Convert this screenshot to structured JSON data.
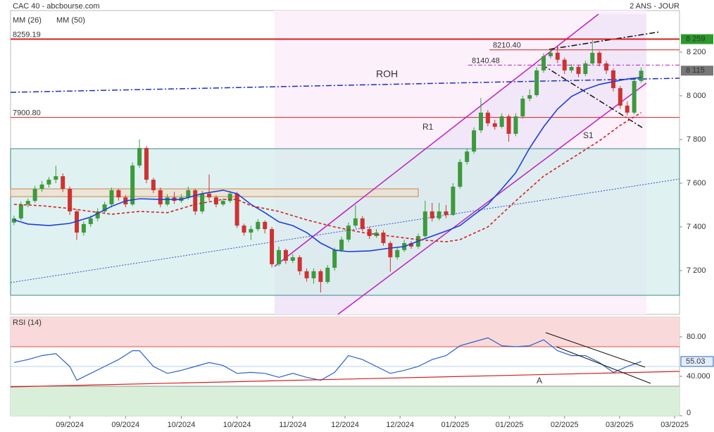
{
  "chart_data": [
    {
      "type": "candlestick",
      "title": "CAC 40 - abcbourse.com",
      "subtitle": "2 ANS - JOUR",
      "up_color": "#3d9a3d",
      "down_color": "#cc3333",
      "xlim": [
        -0.5,
        95.5
      ],
      "ylim": [
        7000,
        8390
      ],
      "yticks": [
        {
          "value": 7200,
          "label": "7 200"
        },
        {
          "value": 7400,
          "label": "7 400"
        },
        {
          "value": 7600,
          "label": "7 600"
        },
        {
          "value": 7800,
          "label": "7 800"
        },
        {
          "value": 8000,
          "label": "8 000"
        },
        {
          "value": 8200,
          "label": "8 200"
        }
      ],
      "xticks": [
        {
          "value": 8,
          "label": "09/2024"
        },
        {
          "value": 16,
          "label": "09/2024"
        },
        {
          "value": 24,
          "label": "10/2024"
        },
        {
          "value": 32,
          "label": "10/2024"
        },
        {
          "value": 40,
          "label": "11/2024"
        },
        {
          "value": 47.5,
          "label": "12/2024"
        },
        {
          "value": 55.4,
          "label": "12/2024"
        },
        {
          "value": 63.3,
          "label": "01/2025"
        },
        {
          "value": 71.1,
          "label": "01/2025"
        },
        {
          "value": 79,
          "label": "02/2025"
        },
        {
          "value": 86.9,
          "label": "03/2025"
        },
        {
          "value": 94.8,
          "label": "03/2025"
        }
      ],
      "candles": [
        [
          7420,
          7452,
          7408,
          7439
        ],
        [
          7439,
          7515,
          7430,
          7503
        ],
        [
          7503,
          7530,
          7490,
          7519
        ],
        [
          7519,
          7588,
          7510,
          7574
        ],
        [
          7574,
          7610,
          7560,
          7594
        ],
        [
          7594,
          7628,
          7580,
          7616
        ],
        [
          7616,
          7680,
          7600,
          7632
        ],
        [
          7632,
          7645,
          7560,
          7574
        ],
        [
          7574,
          7585,
          7455,
          7471
        ],
        [
          7471,
          7480,
          7340,
          7374
        ],
        [
          7374,
          7425,
          7360,
          7413
        ],
        [
          7413,
          7452,
          7400,
          7439
        ],
        [
          7439,
          7485,
          7425,
          7471
        ],
        [
          7471,
          7515,
          7460,
          7503
        ],
        [
          7503,
          7580,
          7490,
          7568
        ],
        [
          7568,
          7575,
          7520,
          7535
        ],
        [
          7535,
          7545,
          7490,
          7503
        ],
        [
          7503,
          7695,
          7495,
          7681
        ],
        [
          7681,
          7800,
          7670,
          7761
        ],
        [
          7761,
          7770,
          7600,
          7616
        ],
        [
          7616,
          7625,
          7555,
          7568
        ],
        [
          7568,
          7580,
          7490,
          7503
        ],
        [
          7503,
          7550,
          7495,
          7535
        ],
        [
          7535,
          7560,
          7505,
          7519
        ],
        [
          7519,
          7550,
          7510,
          7535
        ],
        [
          7535,
          7585,
          7525,
          7568
        ],
        [
          7568,
          7575,
          7455,
          7471
        ],
        [
          7471,
          7565,
          7460,
          7552
        ],
        [
          7552,
          7640,
          7520,
          7535
        ],
        [
          7535,
          7545,
          7490,
          7503
        ],
        [
          7503,
          7530,
          7495,
          7519
        ],
        [
          7519,
          7565,
          7510,
          7552
        ],
        [
          7552,
          7560,
          7395,
          7406
        ],
        [
          7406,
          7415,
          7360,
          7374
        ],
        [
          7374,
          7405,
          7340,
          7390
        ],
        [
          7390,
          7435,
          7380,
          7423
        ],
        [
          7423,
          7430,
          7370,
          7390
        ],
        [
          7390,
          7400,
          7215,
          7229
        ],
        [
          7229,
          7310,
          7220,
          7294
        ],
        [
          7294,
          7300,
          7230,
          7245
        ],
        [
          7245,
          7275,
          7235,
          7261
        ],
        [
          7261,
          7270,
          7180,
          7197
        ],
        [
          7197,
          7210,
          7150,
          7165
        ],
        [
          7165,
          7210,
          7140,
          7197
        ],
        [
          7197,
          7205,
          7100,
          7148
        ],
        [
          7148,
          7225,
          7140,
          7213
        ],
        [
          7213,
          7305,
          7200,
          7294
        ],
        [
          7294,
          7355,
          7285,
          7342
        ],
        [
          7342,
          7420,
          7330,
          7406
        ],
        [
          7406,
          7500,
          7395,
          7439
        ],
        [
          7439,
          7450,
          7380,
          7390
        ],
        [
          7390,
          7400,
          7345,
          7358
        ],
        [
          7358,
          7390,
          7350,
          7374
        ],
        [
          7374,
          7385,
          7315,
          7326
        ],
        [
          7326,
          7335,
          7195,
          7261
        ],
        [
          7261,
          7305,
          7250,
          7294
        ],
        [
          7294,
          7340,
          7285,
          7326
        ],
        [
          7326,
          7335,
          7300,
          7310
        ],
        [
          7310,
          7370,
          7300,
          7358
        ],
        [
          7358,
          7520,
          7350,
          7471
        ],
        [
          7471,
          7510,
          7425,
          7439
        ],
        [
          7439,
          7510,
          7430,
          7471
        ],
        [
          7471,
          7500,
          7440,
          7455
        ],
        [
          7455,
          7600,
          7450,
          7584
        ],
        [
          7584,
          7710,
          7575,
          7697
        ],
        [
          7697,
          7760,
          7685,
          7745
        ],
        [
          7745,
          7855,
          7735,
          7842
        ],
        [
          7842,
          7990,
          7830,
          7923
        ],
        [
          7923,
          7935,
          7860,
          7874
        ],
        [
          7874,
          7890,
          7845,
          7858
        ],
        [
          7858,
          7920,
          7850,
          7906
        ],
        [
          7906,
          7915,
          7790,
          7826
        ],
        [
          7826,
          7920,
          7815,
          7906
        ],
        [
          7906,
          8000,
          7895,
          7987
        ],
        [
          7987,
          8030,
          7975,
          8003
        ],
        [
          8003,
          8130,
          7995,
          8116
        ],
        [
          8116,
          8195,
          8105,
          8181
        ],
        [
          8181,
          8215,
          8170,
          8197
        ],
        [
          8197,
          8230,
          8150,
          8165
        ],
        [
          8165,
          8175,
          8100,
          8116
        ],
        [
          8116,
          8145,
          8105,
          8132
        ],
        [
          8132,
          8140,
          8085,
          8100
        ],
        [
          8100,
          8160,
          8090,
          8148
        ],
        [
          8148,
          8255,
          8140,
          8197
        ],
        [
          8197,
          8205,
          8135,
          8148
        ],
        [
          8148,
          8160,
          8100,
          8116
        ],
        [
          8116,
          8125,
          8020,
          8035
        ],
        [
          8035,
          8045,
          7940,
          7955
        ],
        [
          7955,
          7975,
          7910,
          7923
        ],
        [
          7923,
          8080,
          7915,
          8068
        ],
        [
          8068,
          8130,
          8060,
          8115
        ]
      ],
      "series": [
        {
          "name": "MM (26)",
          "color": "#1f3fd6",
          "dash": false,
          "x": [
            0,
            2,
            5,
            8,
            11,
            14,
            16,
            18,
            21,
            24,
            27,
            30,
            32,
            34,
            36,
            38,
            40,
            42,
            44,
            46,
            48,
            51,
            54,
            56,
            58,
            60,
            62,
            64,
            66,
            68,
            70,
            72,
            74,
            76,
            78,
            80,
            82,
            84,
            86,
            88,
            90
          ],
          "values": [
            7432,
            7413,
            7406,
            7416,
            7445,
            7494,
            7519,
            7529,
            7526,
            7526,
            7552,
            7568,
            7552,
            7503,
            7465,
            7423,
            7406,
            7374,
            7326,
            7294,
            7287,
            7290,
            7303,
            7310,
            7335,
            7358,
            7381,
            7406,
            7455,
            7503,
            7574,
            7648,
            7761,
            7858,
            7939,
            7997,
            8029,
            8052,
            8065,
            8077,
            8084
          ]
        },
        {
          "name": "MM (50)",
          "color": "#d42020",
          "dash": true,
          "x": [
            0,
            4,
            8,
            11,
            14,
            18,
            22,
            26,
            30,
            32,
            34,
            38,
            42,
            46,
            50,
            54,
            58,
            62,
            64,
            68,
            72,
            76,
            80,
            84,
            87,
            90
          ],
          "values": [
            7503,
            7497,
            7484,
            7471,
            7458,
            7471,
            7465,
            7503,
            7526,
            7526,
            7497,
            7471,
            7432,
            7400,
            7374,
            7358,
            7342,
            7332,
            7342,
            7400,
            7519,
            7632,
            7713,
            7794,
            7865,
            7923
          ]
        }
      ],
      "levels": [
        {
          "value": 8259.19,
          "color": "#d42020"
        },
        {
          "value": 8210.4,
          "label": "8210.40",
          "color": "#d42020"
        },
        {
          "value": 8140.48,
          "label": "8140.48",
          "color": "#b020b0"
        },
        {
          "value": 7900.8,
          "label": "7900.80",
          "color": "#d42020"
        }
      ],
      "markers": [
        {
          "value": 8259.19,
          "label": "8 259",
          "color": "#2a9a2a"
        },
        {
          "value": 8115,
          "label": "8 115",
          "color": "#777777"
        }
      ],
      "annotations": [
        "ROH",
        "R1",
        "S1"
      ]
    },
    {
      "type": "line",
      "title": "RSI (14)",
      "color": "#2b62c8",
      "xlim": [
        -0.5,
        95.5
      ],
      "ylim": [
        0,
        100
      ],
      "yticks": [
        0,
        {
          "value": 40,
          "label": "40.000"
        },
        {
          "value": 80,
          "label": "80.00"
        }
      ],
      "zones": [
        70,
        50,
        30
      ],
      "x": [
        0,
        2,
        4,
        6,
        8,
        9,
        11,
        13,
        15,
        17,
        18,
        20,
        22,
        24,
        26,
        28,
        30,
        32,
        34,
        36,
        38,
        40,
        42,
        44,
        46,
        48,
        50,
        52,
        54,
        56,
        58,
        60,
        62,
        64,
        66,
        68,
        70,
        72,
        74,
        76,
        78,
        80,
        82,
        84,
        86,
        88,
        90
      ],
      "values": [
        54,
        57,
        61,
        63,
        50,
        36,
        43,
        50,
        57,
        66,
        66,
        50,
        43,
        46,
        50,
        54,
        51,
        43,
        44,
        43,
        39,
        43,
        39,
        36,
        44,
        61,
        57,
        50,
        43,
        46,
        50,
        57,
        61,
        71,
        75,
        79,
        71,
        70,
        71,
        77,
        66,
        61,
        61,
        54,
        44,
        50,
        55.03
      ],
      "marker": 55.03,
      "annotations": [
        "A"
      ]
    }
  ]
}
